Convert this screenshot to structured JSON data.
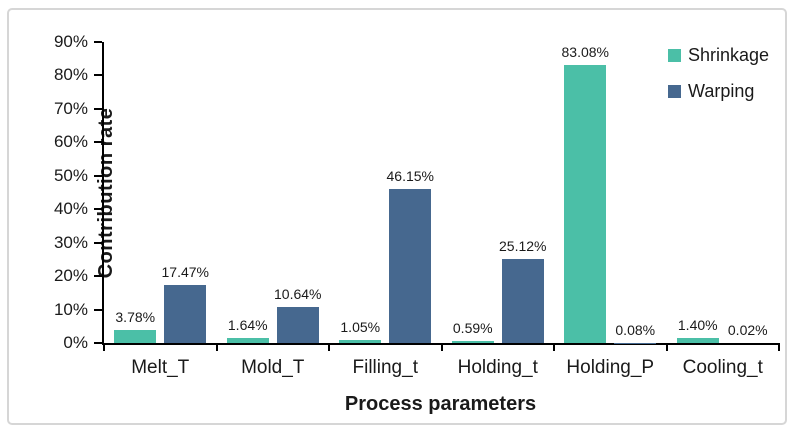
{
  "chart_data": {
    "type": "bar",
    "title": "",
    "xlabel": "Process parameters",
    "ylabel": "Contribution rate",
    "categories": [
      "Melt_T",
      "Mold_T",
      "Filling_t",
      "Holding_t",
      "Holding_P",
      "Cooling_t"
    ],
    "series": [
      {
        "name": "Shrinkage",
        "color": "#4bbfa7",
        "values": [
          3.78,
          1.64,
          1.05,
          0.59,
          83.08,
          1.4
        ],
        "labels": [
          "3.78%",
          "1.64%",
          "1.05%",
          "0.59%",
          "83.08%",
          "1.40%"
        ]
      },
      {
        "name": "Warping",
        "color": "#46688f",
        "values": [
          17.47,
          10.64,
          46.15,
          25.12,
          0.08,
          0.02
        ],
        "labels": [
          "17.47%",
          "10.64%",
          "46.15%",
          "25.12%",
          "0.08%",
          "0.02%"
        ]
      }
    ],
    "ylim": [
      0,
      90
    ],
    "ytick_step": 10,
    "ytick_labels": [
      "0%",
      "10%",
      "20%",
      "30%",
      "40%",
      "50%",
      "60%",
      "70%",
      "80%",
      "90%"
    ],
    "grid": false,
    "legend_position": "top-right",
    "axis_color": "#000000",
    "frame_border_color": "#d6d6d6"
  }
}
